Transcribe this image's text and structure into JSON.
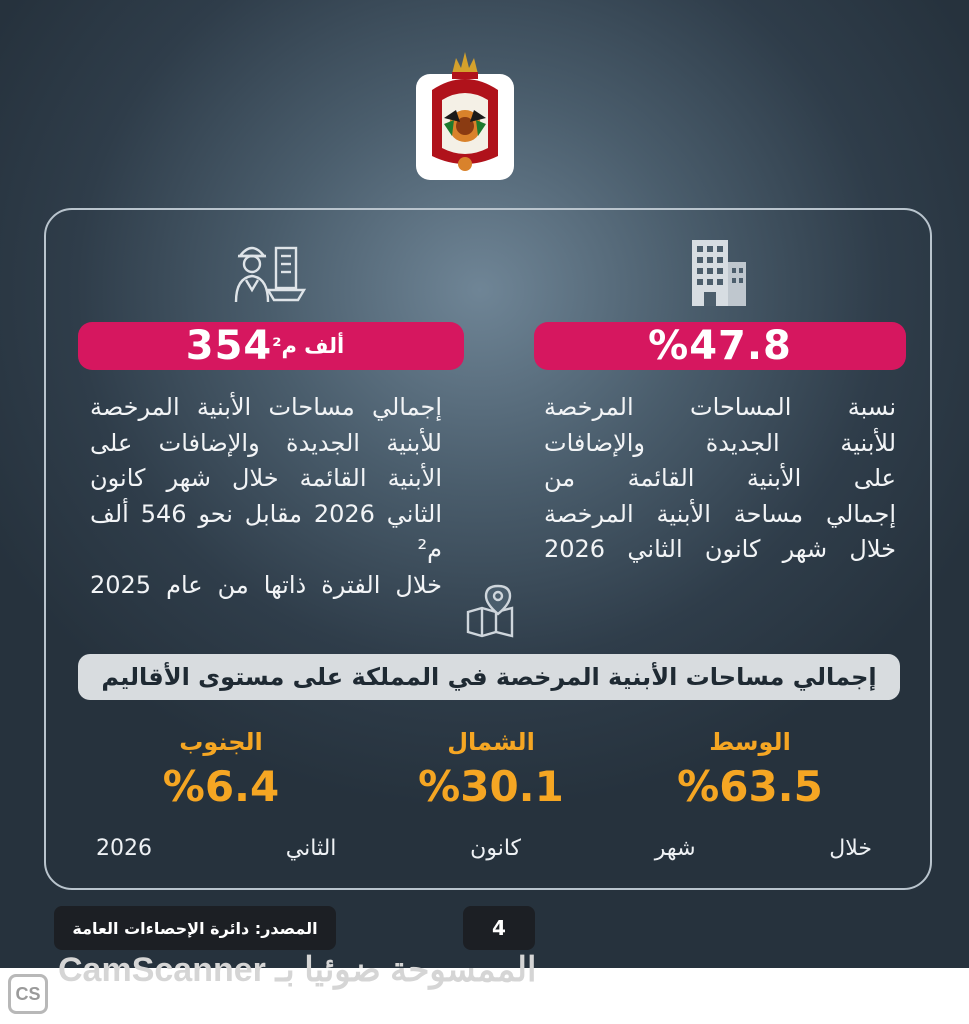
{
  "stat_right": {
    "value": "%47.8",
    "description_lines": [
      "نسبة المساحات المرخصة",
      "للأبنية الجديدة والإضافات",
      "على الأبنية القائمة من",
      "إجمالي مساحة الأبنية المرخصة",
      "خلال شهر كانون الثاني 2026"
    ],
    "icon": "office-building-icon"
  },
  "stat_left": {
    "value": "354",
    "unit": "ألف م²",
    "description_lines": [
      "إجمالي مساحات الأبنية المرخصة",
      "للأبنية الجديدة والإضافات على",
      "الأبنية القائمة خلال شهر كانون",
      "الثاني 2026 مقابل نحو 546 ألف م²",
      "خلال الفترة ذاتها من عام 2025"
    ],
    "icon": "engineer-building-icon"
  },
  "regions": {
    "title": "إجمالي مساحات الأبنية المرخصة في المملكة على مستوى الأقاليم",
    "icon": "map-pin-icon",
    "items": [
      {
        "name": "الوسط",
        "value": "%63.5"
      },
      {
        "name": "الشمال",
        "value": "%30.1"
      },
      {
        "name": "الجنوب",
        "value": "%6.4"
      }
    ],
    "period": "خلال شهر كانون الثاني 2026"
  },
  "footer": {
    "source": "المصدر: دائرة الإحصاءات العامة",
    "page_number": "4"
  },
  "watermark": {
    "logo_text": "CS",
    "text": "CamScanner الممسوحة ضوئيا بـ"
  },
  "colors": {
    "accent_pink": "#d6175f",
    "accent_orange": "#f5a623",
    "background_dark": "#2f3d4a"
  }
}
